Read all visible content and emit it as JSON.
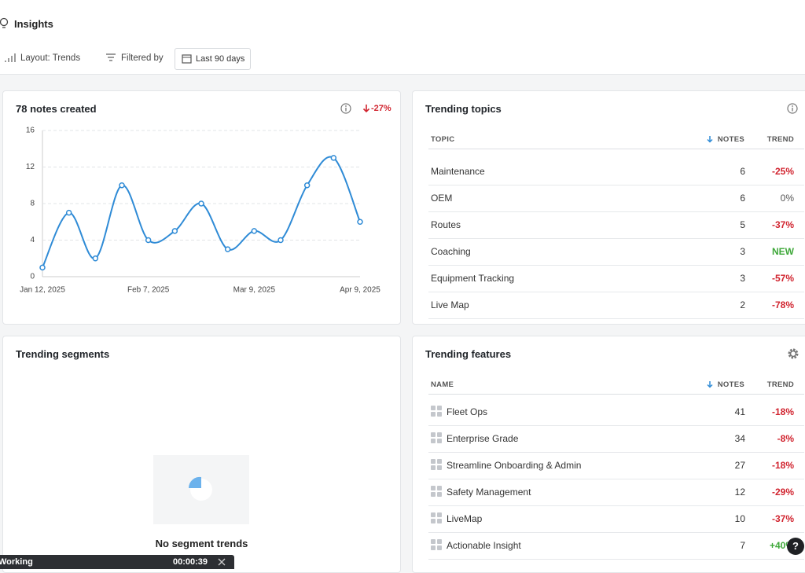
{
  "header": {
    "title": "Insights"
  },
  "toolbar": {
    "layout": "Layout: Trends",
    "filter": "Filtered by",
    "range": "Last 90 days"
  },
  "notes_card": {
    "title": "78 notes created",
    "change": "-27%",
    "chart_data": {
      "type": "line",
      "categories": [
        "Jan 12, 2025",
        null,
        null,
        null,
        "Feb 7, 2025",
        null,
        null,
        null,
        "Mar 9, 2025",
        null,
        null,
        null,
        "Apr 9, 2025"
      ],
      "series": [
        {
          "name": "Notes",
          "color": "#2f8bd6",
          "values": [
            1,
            7,
            2,
            10,
            4,
            5,
            8,
            3,
            5,
            4,
            10,
            13,
            6
          ]
        }
      ],
      "ylim": [
        0,
        16
      ],
      "yticks": [
        0,
        4,
        8,
        12,
        16
      ],
      "grid": true
    }
  },
  "topics_card": {
    "title": "Trending topics",
    "columns": [
      "TOPIC",
      "NOTES",
      "TREND"
    ],
    "rows": [
      [
        "Maintenance",
        "6",
        "-25%"
      ],
      [
        "OEM",
        "6",
        "0%"
      ],
      [
        "Routes",
        "5",
        "-37%"
      ],
      [
        "Coaching",
        "3",
        "NEW"
      ],
      [
        "Equipment Tracking",
        "3",
        "-57%"
      ],
      [
        "Live Map",
        "2",
        "-78%"
      ]
    ]
  },
  "segments_card": {
    "title": "Trending segments",
    "empty": "No segment trends"
  },
  "features_card": {
    "title": "Trending features",
    "columns": [
      "NAME",
      "NOTES",
      "TREND"
    ],
    "rows": [
      [
        "Fleet Ops",
        "41",
        "-18%"
      ],
      [
        "Enterprise Grade",
        "34",
        "-8%"
      ],
      [
        "Streamline Onboarding & Admin",
        "27",
        "-18%"
      ],
      [
        "Safety Management",
        "12",
        "-29%"
      ],
      [
        "LiveMap",
        "10",
        "-37%"
      ],
      [
        "Actionable Insight",
        "7",
        "+40%"
      ]
    ]
  },
  "recorder": {
    "status": "Working",
    "time": "00:00:39"
  },
  "help": "?"
}
